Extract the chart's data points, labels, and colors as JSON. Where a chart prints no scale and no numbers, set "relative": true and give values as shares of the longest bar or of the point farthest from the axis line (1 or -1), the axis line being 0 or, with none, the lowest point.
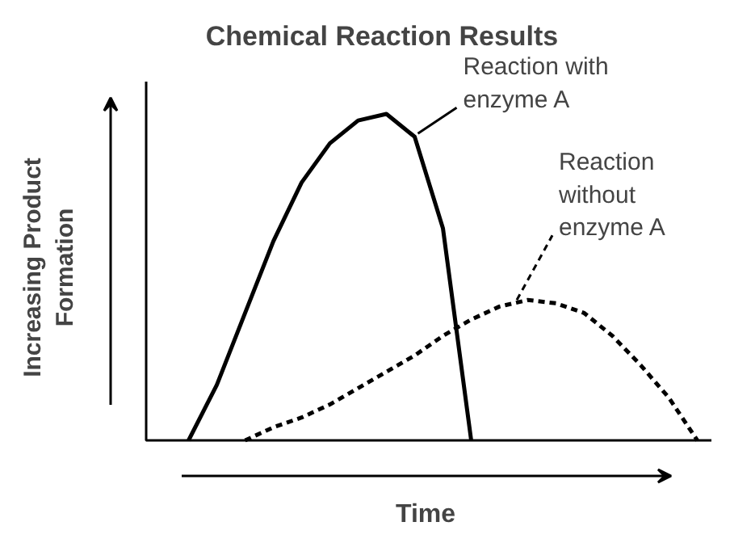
{
  "chart_data": {
    "type": "line",
    "title": "Chemical Reaction Results",
    "xlabel": "Time",
    "ylabel": "Increasing Product\nFormation",
    "relative": true,
    "categories": [
      null,
      null,
      null,
      null,
      null,
      null,
      null,
      null,
      null,
      null,
      null,
      null,
      null,
      null,
      null,
      null,
      null,
      null,
      null,
      null
    ],
    "series": [
      {
        "color": "#000000",
        "line_style": "solid",
        "values": [
          null,
          0,
          0.17,
          0.39,
          0.61,
          0.79,
          0.91,
          0.98,
          1,
          0.93,
          0.65,
          0,
          null,
          null,
          null,
          null,
          null,
          null,
          null,
          null
        ]
      },
      {
        "color": "#000000",
        "line_style": "dashed",
        "values": [
          null,
          null,
          null,
          0,
          0.04,
          0.07,
          0.11,
          0.16,
          0.21,
          0.26,
          0.32,
          0.37,
          0.41,
          0.43,
          0.42,
          0.39,
          0.32,
          0.23,
          0.13,
          0
        ]
      }
    ],
    "annotations": [
      "Reaction with\nenzyme A",
      "Reaction\nwithout\nenzyme A"
    ]
  }
}
